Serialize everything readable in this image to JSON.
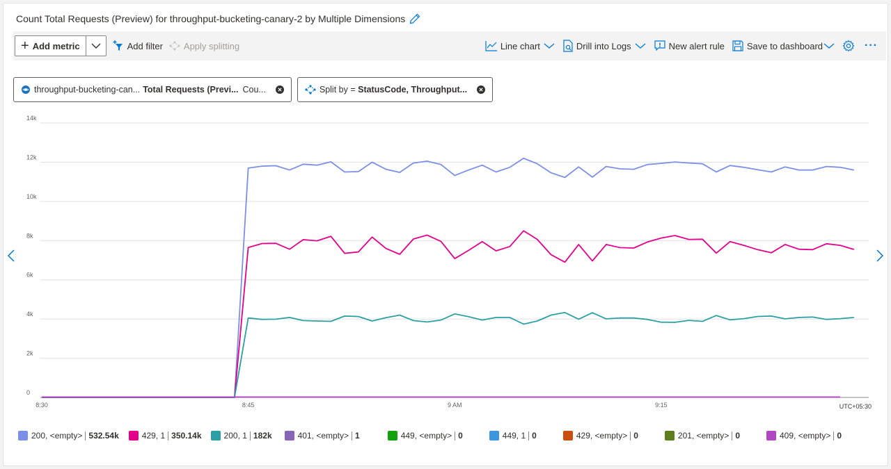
{
  "title": "Count Total Requests (Preview) for throughput-bucketing-canary-2 by Multiple Dimensions",
  "toolbar": {
    "add_metric": "Add metric",
    "add_filter": "Add filter",
    "apply_splitting": "Apply splitting",
    "line_chart": "Line chart",
    "drill_logs": "Drill into Logs",
    "new_alert": "New alert rule",
    "save_dashboard": "Save to dashboard",
    "more": "···"
  },
  "pills": {
    "metric": {
      "resource": "throughput-bucketing-can...",
      "metric": "Total Requests (Previ...",
      "agg": "Cou..."
    },
    "split": {
      "prefix": "Split by = ",
      "value": "StatusCode, Throughput..."
    }
  },
  "colors": {
    "accent": "#0078d4"
  },
  "chart_data": {
    "type": "line",
    "ylim": [
      0,
      14000
    ],
    "yticks": [
      "0",
      "2k",
      "4k",
      "6k",
      "8k",
      "10k",
      "12k",
      "14k"
    ],
    "xticks": [
      "8:30",
      "8:45",
      "9 AM",
      "9:15"
    ],
    "xlim": [
      0,
      58
    ],
    "tick_positions": [
      0,
      15,
      30,
      45
    ],
    "timezone": "UTC+05:30",
    "series": [
      {
        "name": "200, <empty>",
        "total": "532.54k",
        "color": "#7b8fe6",
        "values": [
          0,
          0,
          0,
          0,
          0,
          0,
          0,
          0,
          0,
          0,
          0,
          0,
          0,
          0,
          0,
          11700,
          11800,
          11820,
          11600,
          11900,
          11850,
          12020,
          11500,
          11520,
          12000,
          11640,
          11480,
          11960,
          12050,
          11880,
          11320,
          11600,
          11850,
          11500,
          11740,
          12200,
          11920,
          11460,
          11220,
          11760,
          11240,
          11780,
          11660,
          11640,
          11880,
          11940,
          12010,
          11960,
          11920,
          11500,
          11830,
          11740,
          11620,
          11500,
          11760,
          11600,
          11600,
          11780,
          11740,
          11600
        ]
      },
      {
        "name": "429, 1",
        "total": "350.14k",
        "color": "#e3008c",
        "values": [
          0,
          0,
          0,
          0,
          0,
          0,
          0,
          0,
          0,
          0,
          0,
          0,
          0,
          0,
          0,
          7650,
          7850,
          7860,
          7560,
          8050,
          7990,
          8220,
          7350,
          7420,
          8180,
          7600,
          7300,
          8080,
          8280,
          7960,
          7080,
          7500,
          7950,
          7480,
          7700,
          8500,
          8060,
          7280,
          6900,
          7800,
          6960,
          7800,
          7640,
          7620,
          7930,
          8130,
          8260,
          8060,
          8070,
          7360,
          7950,
          7760,
          7540,
          7380,
          7800,
          7560,
          7540,
          7840,
          7760,
          7550
        ]
      },
      {
        "name": "200, 1",
        "total": "182k",
        "color": "#2aa0a4",
        "values": [
          0,
          0,
          0,
          0,
          0,
          0,
          0,
          0,
          0,
          0,
          0,
          0,
          0,
          0,
          0,
          4050,
          3980,
          3990,
          4080,
          3920,
          3900,
          3880,
          4150,
          4130,
          3900,
          4070,
          4200,
          3920,
          3850,
          3950,
          4260,
          4120,
          3950,
          4080,
          4080,
          3740,
          3900,
          4200,
          4330,
          3990,
          4320,
          4010,
          4050,
          4050,
          3980,
          3840,
          3830,
          3930,
          3880,
          4180,
          3960,
          4020,
          4130,
          4150,
          4010,
          4080,
          4100,
          3980,
          4020,
          4080
        ]
      },
      {
        "name": "401, <empty>",
        "total": "1",
        "color": "#8764b8",
        "values": []
      },
      {
        "name": "449, <empty>",
        "total": "0",
        "color": "#13a10e",
        "values": []
      },
      {
        "name": "449, 1",
        "total": "0",
        "color": "#3a96dd",
        "values": []
      },
      {
        "name": "429, <empty>",
        "total": "0",
        "color": "#ca5010",
        "values": []
      },
      {
        "name": "201, <empty>",
        "total": "0",
        "color": "#5c7e1d",
        "values": []
      },
      {
        "name": "409, <empty>",
        "total": "0",
        "color": "#b146c2",
        "values": []
      }
    ]
  }
}
